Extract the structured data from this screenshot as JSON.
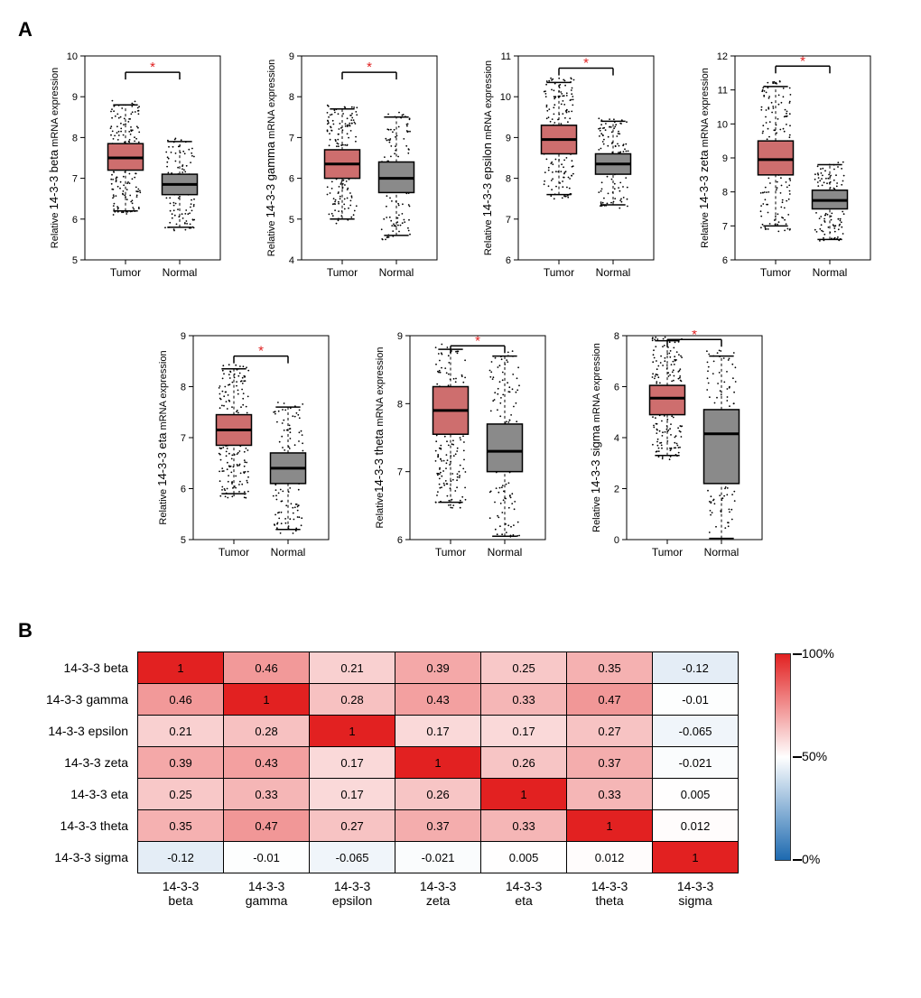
{
  "panelA": {
    "label": "A",
    "tumor_color": "#ce6e6e",
    "normal_color": "#8a8a8a",
    "significance_color": "#e02020",
    "text_color": "#000000",
    "xlabels": [
      "Tumor",
      "Normal"
    ],
    "plots": [
      {
        "name": "14-3-3 beta",
        "ylabel_prefix": "Relative ",
        "ylabel_main": "14-3-3 beta",
        "ylabel_suffix": " mRNA expression",
        "ylim": [
          5,
          10
        ],
        "yticks": [
          5,
          6,
          7,
          8,
          9,
          10
        ],
        "tumor": {
          "q1": 7.2,
          "med": 7.5,
          "q3": 7.85,
          "wlo": 6.2,
          "whi": 8.8
        },
        "normal": {
          "q1": 6.6,
          "med": 6.85,
          "q3": 7.1,
          "wlo": 5.8,
          "whi": 7.9
        },
        "sig_y": 9.6
      },
      {
        "name": "14-3-3 gamma",
        "ylabel_prefix": "Relative ",
        "ylabel_main": "14-3-3 gamma",
        "ylabel_suffix": " mRNA expression",
        "ylim": [
          4,
          9
        ],
        "yticks": [
          4,
          5,
          6,
          7,
          8,
          9
        ],
        "tumor": {
          "q1": 6.0,
          "med": 6.35,
          "q3": 6.7,
          "wlo": 5.0,
          "whi": 7.7
        },
        "normal": {
          "q1": 5.65,
          "med": 6.0,
          "q3": 6.4,
          "wlo": 4.6,
          "whi": 7.5
        },
        "sig_y": 8.6
      },
      {
        "name": "14-3-3 epsilon",
        "ylabel_prefix": "Relative ",
        "ylabel_main": "14-3-3 epsilon",
        "ylabel_suffix": " mRNA expression",
        "ylim": [
          6,
          11
        ],
        "yticks": [
          6,
          7,
          8,
          9,
          10,
          11
        ],
        "tumor": {
          "q1": 8.6,
          "med": 8.95,
          "q3": 9.3,
          "wlo": 7.6,
          "whi": 10.35
        },
        "normal": {
          "q1": 8.1,
          "med": 8.35,
          "q3": 8.6,
          "wlo": 7.35,
          "whi": 9.4
        },
        "sig_y": 10.7
      },
      {
        "name": "14-3-3 zeta",
        "ylabel_prefix": "Relative ",
        "ylabel_main": "14-3-3 zeta",
        "ylabel_suffix": " mRNA expression",
        "ylim": [
          6,
          12
        ],
        "yticks": [
          6,
          7,
          8,
          9,
          10,
          11,
          12
        ],
        "tumor": {
          "q1": 8.5,
          "med": 8.95,
          "q3": 9.5,
          "wlo": 7.0,
          "whi": 11.1
        },
        "normal": {
          "q1": 7.5,
          "med": 7.75,
          "q3": 8.05,
          "wlo": 6.6,
          "whi": 8.8
        },
        "sig_y": 11.7
      },
      {
        "name": "14-3-3 eta",
        "ylabel_prefix": "Relative ",
        "ylabel_main": "14-3-3 eta",
        "ylabel_suffix": " mRNA expression",
        "ylim": [
          5,
          9
        ],
        "yticks": [
          5,
          6,
          7,
          8,
          9
        ],
        "tumor": {
          "q1": 6.85,
          "med": 7.15,
          "q3": 7.45,
          "wlo": 5.9,
          "whi": 8.35
        },
        "normal": {
          "q1": 6.1,
          "med": 6.4,
          "q3": 6.7,
          "wlo": 5.2,
          "whi": 7.6
        },
        "sig_y": 8.6
      },
      {
        "name": "14-3-3 theta",
        "ylabel_prefix": "Relative",
        "ylabel_main": "14-3-3 theta",
        "ylabel_suffix": " mRNA expression",
        "ylim": [
          6,
          9
        ],
        "yticks": [
          6,
          7,
          8,
          9
        ],
        "tumor": {
          "q1": 7.55,
          "med": 7.9,
          "q3": 8.25,
          "wlo": 6.55,
          "whi": 8.8
        },
        "normal": {
          "q1": 7.0,
          "med": 7.3,
          "q3": 7.7,
          "wlo": 6.05,
          "whi": 8.7
        },
        "sig_y": 8.85
      },
      {
        "name": "14-3-3 sigma",
        "ylabel_prefix": "Relative ",
        "ylabel_main": "14-3-3 sigma",
        "ylabel_suffix": " mRNA expression",
        "ylim": [
          0,
          8
        ],
        "yticks": [
          0,
          2,
          4,
          6,
          8
        ],
        "tumor": {
          "q1": 4.9,
          "med": 5.55,
          "q3": 6.05,
          "wlo": 3.3,
          "whi": 7.8
        },
        "normal": {
          "q1": 2.2,
          "med": 4.15,
          "q3": 5.1,
          "wlo": 0.05,
          "whi": 7.2
        },
        "sig_y": 7.85
      }
    ]
  },
  "panelB": {
    "label": "B",
    "names": [
      "14-3-3 beta",
      "14-3-3 gamma",
      "14-3-3 epsilon",
      "14-3-3 zeta",
      "14-3-3 eta",
      "14-3-3 theta",
      "14-3-3 sigma"
    ],
    "col_labels": [
      [
        "14-3-3",
        "beta"
      ],
      [
        "14-3-3",
        "gamma"
      ],
      [
        "14-3-3",
        "epsilon"
      ],
      [
        "14-3-3",
        "zeta"
      ],
      [
        "14-3-3",
        "eta"
      ],
      [
        "14-3-3",
        "theta"
      ],
      [
        "14-3-3",
        "sigma"
      ]
    ],
    "matrix": [
      [
        1,
        0.46,
        0.21,
        0.39,
        0.25,
        0.35,
        -0.12
      ],
      [
        0.46,
        1,
        0.28,
        0.43,
        0.33,
        0.47,
        -0.01
      ],
      [
        0.21,
        0.28,
        1,
        0.17,
        0.17,
        0.27,
        -0.065
      ],
      [
        0.39,
        0.43,
        0.17,
        1,
        0.26,
        0.37,
        -0.021
      ],
      [
        0.25,
        0.33,
        0.17,
        0.26,
        1,
        0.33,
        0.005
      ],
      [
        0.35,
        0.47,
        0.27,
        0.37,
        0.33,
        1,
        0.012
      ],
      [
        -0.12,
        -0.01,
        -0.065,
        -0.021,
        0.005,
        0.012,
        1
      ]
    ],
    "colorscale": {
      "min_color": "#1d6ab0",
      "mid_color": "#ffffff",
      "max_color": "#e22121",
      "labels": [
        "100%",
        "50%",
        "0%"
      ]
    }
  }
}
